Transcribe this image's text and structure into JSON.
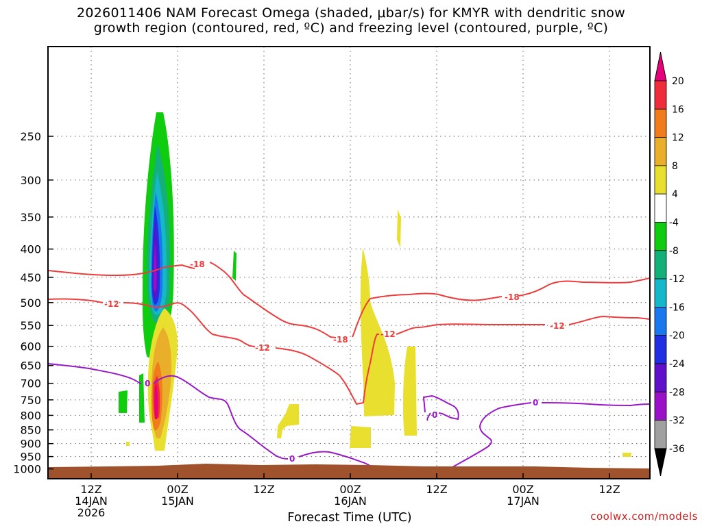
{
  "chart_data": {
    "type": "heatmap",
    "title_line1": "2026011406 NAM Forecast Omega (shaded, μbar/s) for KMYR with dendritic snow",
    "title_line2": "growth region (contoured, red, ºC) and freezing level (contoured, purple, ºC)",
    "xlabel": "Forecast Time (UTC)",
    "credit": "coolwx.com/models",
    "y_ticks": [
      "250",
      "300",
      "350",
      "400",
      "450",
      "500",
      "550",
      "600",
      "650",
      "700",
      "750",
      "800",
      "850",
      "900",
      "950",
      "1000"
    ],
    "x_ticks": [
      {
        "l1": "12Z",
        "l2": "14JAN",
        "l3": "2026"
      },
      {
        "l1": "00Z",
        "l2": "15JAN",
        "l3": ""
      },
      {
        "l1": "12Z",
        "l2": "",
        "l3": ""
      },
      {
        "l1": "00Z",
        "l2": "16JAN",
        "l3": ""
      },
      {
        "l1": "12Z",
        "l2": "",
        "l3": ""
      },
      {
        "l1": "00Z",
        "l2": "17JAN",
        "l3": ""
      },
      {
        "l1": "12Z",
        "l2": "",
        "l3": ""
      }
    ],
    "colorbar": {
      "labels": [
        "20",
        "16",
        "12",
        "8",
        "4",
        "-4",
        "-8",
        "-12",
        "-16",
        "-20",
        "-24",
        "-28",
        "-32",
        "-36"
      ],
      "colors": [
        "#e6007a",
        "#ef2d3a",
        "#f07c1c",
        "#e9ae2a",
        "#e8df2f",
        "#ffffff",
        "#0fcc0f",
        "#14b07a",
        "#14b8c8",
        "#1a78ef",
        "#2030e0",
        "#6010c8",
        "#9a10c8",
        "#a0a0a0",
        "#000000"
      ]
    },
    "isotherm_labels": {
      "dgz_lower": "-12",
      "dgz_upper": "-18",
      "freezing": "0"
    },
    "colors": {
      "dgz_contour": "#ee3b3b",
      "freezing_contour": "#9a18c8",
      "ground": "#a0522d"
    }
  }
}
